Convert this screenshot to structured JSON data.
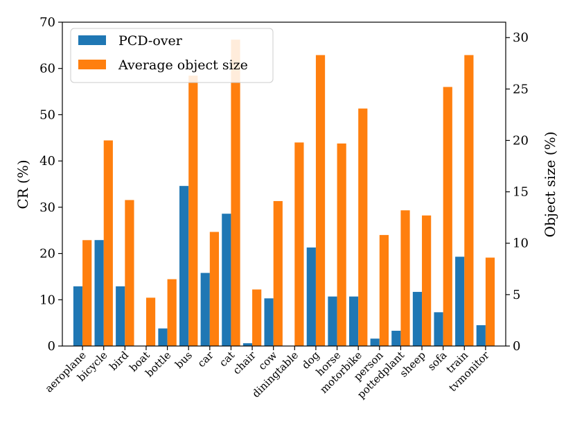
{
  "chart_data": {
    "type": "bar",
    "categories": [
      "aeroplane",
      "bicycle",
      "bird",
      "boat",
      "bottle",
      "bus",
      "car",
      "cat",
      "chair",
      "cow",
      "diningtable",
      "dog",
      "horse",
      "motorbike",
      "person",
      "pottedplant",
      "sheep",
      "sofa",
      "train",
      "tvmonitor"
    ],
    "series": [
      {
        "name": "PCD-over",
        "axis": "left",
        "color": "#1f77b4",
        "values": [
          12.9,
          22.9,
          12.9,
          0.0,
          3.8,
          34.6,
          15.8,
          28.6,
          0.6,
          10.3,
          0.0,
          21.3,
          10.7,
          10.7,
          1.6,
          3.3,
          11.7,
          7.3,
          19.3,
          4.5
        ]
      },
      {
        "name": "Average object size",
        "axis": "right",
        "color": "#ff7f0e",
        "values": [
          10.3,
          20.0,
          14.2,
          4.7,
          6.5,
          26.3,
          11.1,
          29.8,
          5.5,
          14.1,
          19.8,
          28.3,
          19.7,
          23.1,
          10.8,
          13.2,
          12.7,
          25.2,
          28.3,
          8.6
        ]
      }
    ],
    "ylabel": "CR (%)",
    "y2label": "Object size (%)",
    "ylim": [
      0,
      70
    ],
    "y2lim": [
      0,
      31.5
    ],
    "yticks": [
      "0",
      "10",
      "20",
      "30",
      "40",
      "50",
      "60",
      "70"
    ],
    "y2ticks": [
      "0",
      "5",
      "10",
      "15",
      "20",
      "25",
      "30"
    ],
    "grid": false,
    "legend_position": "top-left"
  }
}
